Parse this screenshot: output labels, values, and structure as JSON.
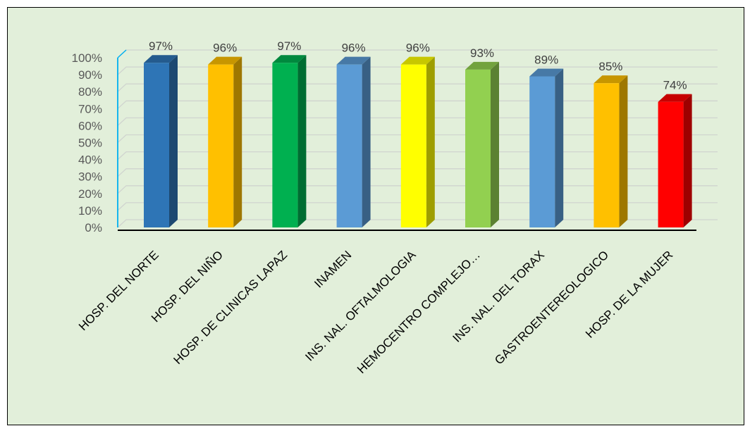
{
  "chart_data": {
    "type": "bar",
    "title": "",
    "xlabel": "",
    "ylabel": "",
    "ylim": [
      0,
      100
    ],
    "y_ticks": [
      "0%",
      "10%",
      "20%",
      "30%",
      "40%",
      "50%",
      "60%",
      "70%",
      "80%",
      "90%",
      "100%"
    ],
    "grid": true,
    "style": "3d-bar",
    "background_color": "#e2efda",
    "categories": [
      "HOSP. DEL NORTE",
      "HOSP. DEL NIÑO",
      "HOSP. DE CLINICAS LAPAZ",
      "INAMEN",
      "INS. NAL. OFTALMOLOGIA",
      "HEMOCENTRO COMPLEJO…",
      "INS. NAL. DEL TORAX",
      "GASTROENTEREOLOGICO",
      "HOSP. DE LA MUJER"
    ],
    "values": [
      97,
      96,
      97,
      96,
      96,
      93,
      89,
      85,
      74
    ],
    "data_labels": [
      "97%",
      "96%",
      "97%",
      "96%",
      "96%",
      "93%",
      "89%",
      "85%",
      "74%"
    ],
    "colors": [
      "#2e75b6",
      "#ffc000",
      "#00b050",
      "#5b9bd5",
      "#ffff00",
      "#92d050",
      "#5b9bd5",
      "#ffc000",
      "#ff0000"
    ]
  }
}
